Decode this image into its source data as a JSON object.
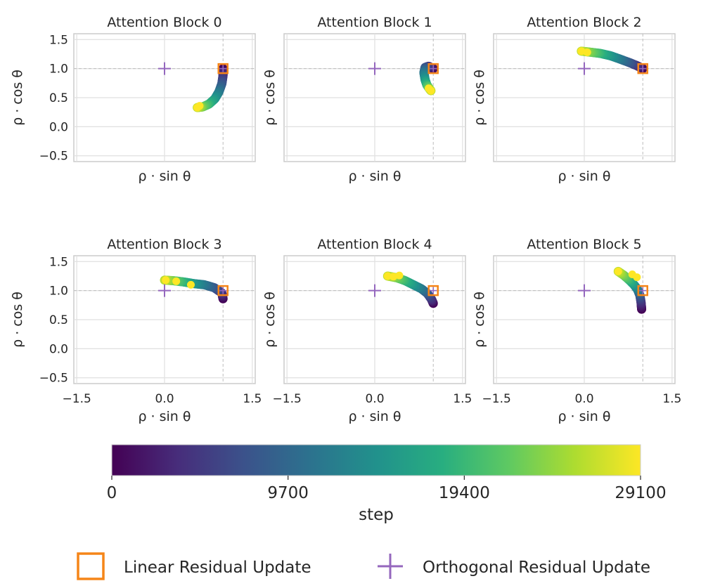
{
  "chart_data": {
    "type": "scatter",
    "description_note": "Six panels of rho*sin(theta) vs rho*cos(theta) trajectories over training steps",
    "xlabel": "ρ · sin θ",
    "ylabel": "ρ · cos θ",
    "xlim": [
      -1.55,
      1.55
    ],
    "ylim": [
      -0.6,
      1.6
    ],
    "x_ticks": [
      -1.5,
      0.0,
      1.5
    ],
    "x_tick_labels": [
      "−1.5",
      "0.0",
      "1.5"
    ],
    "y_ticks": [
      1.5,
      1.0,
      0.5,
      0.0,
      -0.5
    ],
    "y_tick_labels": [
      "1.5",
      "1.0",
      "0.5",
      "0.0",
      "−0.5"
    ],
    "reference_x": 1.0,
    "reference_y": 1.0,
    "panels": [
      {
        "title": "Attention Block 0",
        "path": [
          [
            1.0,
            1.0
          ],
          [
            1.0,
            0.88
          ],
          [
            0.98,
            0.74
          ],
          [
            0.93,
            0.6
          ],
          [
            0.86,
            0.48
          ],
          [
            0.76,
            0.39
          ],
          [
            0.65,
            0.34
          ],
          [
            0.56,
            0.33
          ]
        ],
        "end_points": [
          [
            0.56,
            0.33
          ],
          [
            0.6,
            0.36
          ]
        ],
        "linear_update": [
          1.0,
          1.0
        ],
        "orthogonal_update": [
          0.0,
          1.0
        ]
      },
      {
        "title": "Attention Block 1",
        "path": [
          [
            1.0,
            1.0
          ],
          [
            0.92,
            1.04
          ],
          [
            0.86,
            1.02
          ],
          [
            0.84,
            0.93
          ],
          [
            0.86,
            0.81
          ],
          [
            0.89,
            0.72
          ],
          [
            0.93,
            0.66
          ],
          [
            0.96,
            0.62
          ]
        ],
        "end_points": [
          [
            0.92,
            0.66
          ],
          [
            0.96,
            0.62
          ]
        ],
        "linear_update": [
          1.0,
          1.0
        ],
        "orthogonal_update": [
          0.0,
          1.0
        ]
      },
      {
        "title": "Attention Block 2",
        "path": [
          [
            1.0,
            1.0
          ],
          [
            0.9,
            1.05
          ],
          [
            0.78,
            1.1
          ],
          [
            0.62,
            1.16
          ],
          [
            0.45,
            1.22
          ],
          [
            0.28,
            1.26
          ],
          [
            0.12,
            1.28
          ],
          [
            -0.05,
            1.3
          ]
        ],
        "end_points": [
          [
            -0.05,
            1.3
          ],
          [
            0.05,
            1.28
          ]
        ],
        "linear_update": [
          1.0,
          1.0
        ],
        "orthogonal_update": [
          0.0,
          1.0
        ]
      },
      {
        "title": "Attention Block 3",
        "path": [
          [
            1.0,
            0.86
          ],
          [
            0.98,
            0.96
          ],
          [
            0.85,
            1.05
          ],
          [
            0.68,
            1.1
          ],
          [
            0.5,
            1.12
          ],
          [
            0.32,
            1.15
          ],
          [
            0.15,
            1.17
          ],
          [
            0.0,
            1.18
          ]
        ],
        "end_points": [
          [
            0.02,
            1.18
          ],
          [
            0.2,
            1.16
          ],
          [
            0.45,
            1.1
          ]
        ],
        "linear_update": [
          1.0,
          1.0
        ],
        "orthogonal_update": [
          0.0,
          1.0
        ]
      },
      {
        "title": "Attention Block 4",
        "path": [
          [
            1.0,
            0.78
          ],
          [
            0.97,
            0.85
          ],
          [
            0.9,
            0.95
          ],
          [
            0.8,
            1.03
          ],
          [
            0.66,
            1.1
          ],
          [
            0.52,
            1.17
          ],
          [
            0.38,
            1.22
          ],
          [
            0.22,
            1.25
          ]
        ],
        "end_points": [
          [
            0.22,
            1.25
          ],
          [
            0.32,
            1.24
          ],
          [
            0.42,
            1.26
          ]
        ],
        "linear_update": [
          1.0,
          1.0
        ],
        "orthogonal_update": [
          0.0,
          1.0
        ]
      },
      {
        "title": "Attention Block 5",
        "path": [
          [
            0.98,
            0.68
          ],
          [
            0.97,
            0.8
          ],
          [
            0.95,
            0.92
          ],
          [
            0.91,
            1.02
          ],
          [
            0.85,
            1.1
          ],
          [
            0.77,
            1.18
          ],
          [
            0.68,
            1.26
          ],
          [
            0.58,
            1.33
          ]
        ],
        "end_points": [
          [
            0.58,
            1.33
          ],
          [
            0.82,
            1.28
          ],
          [
            0.9,
            1.23
          ]
        ],
        "linear_update": [
          1.0,
          1.0
        ],
        "orthogonal_update": [
          0.0,
          1.0
        ]
      }
    ],
    "colorbar": {
      "label": "step",
      "colormap": "viridis",
      "range": [
        0,
        29100
      ],
      "ticks": [
        0,
        9700,
        19400,
        29100
      ],
      "tick_labels": [
        "0",
        "9700",
        "19400",
        "29100"
      ]
    },
    "legend": {
      "placement": "bottom-center",
      "items": [
        {
          "label": "Linear Residual Update",
          "marker": "square",
          "color": "#f58518"
        },
        {
          "label": "Orthogonal Residual Update",
          "marker": "plus",
          "color": "#9467bd"
        }
      ]
    },
    "colors": {
      "linear": "#f58518",
      "orthogonal": "#9467bd",
      "grid": "#e0e0e0",
      "spine": "#cccccc",
      "reference_line": "#bdbdbd"
    }
  }
}
